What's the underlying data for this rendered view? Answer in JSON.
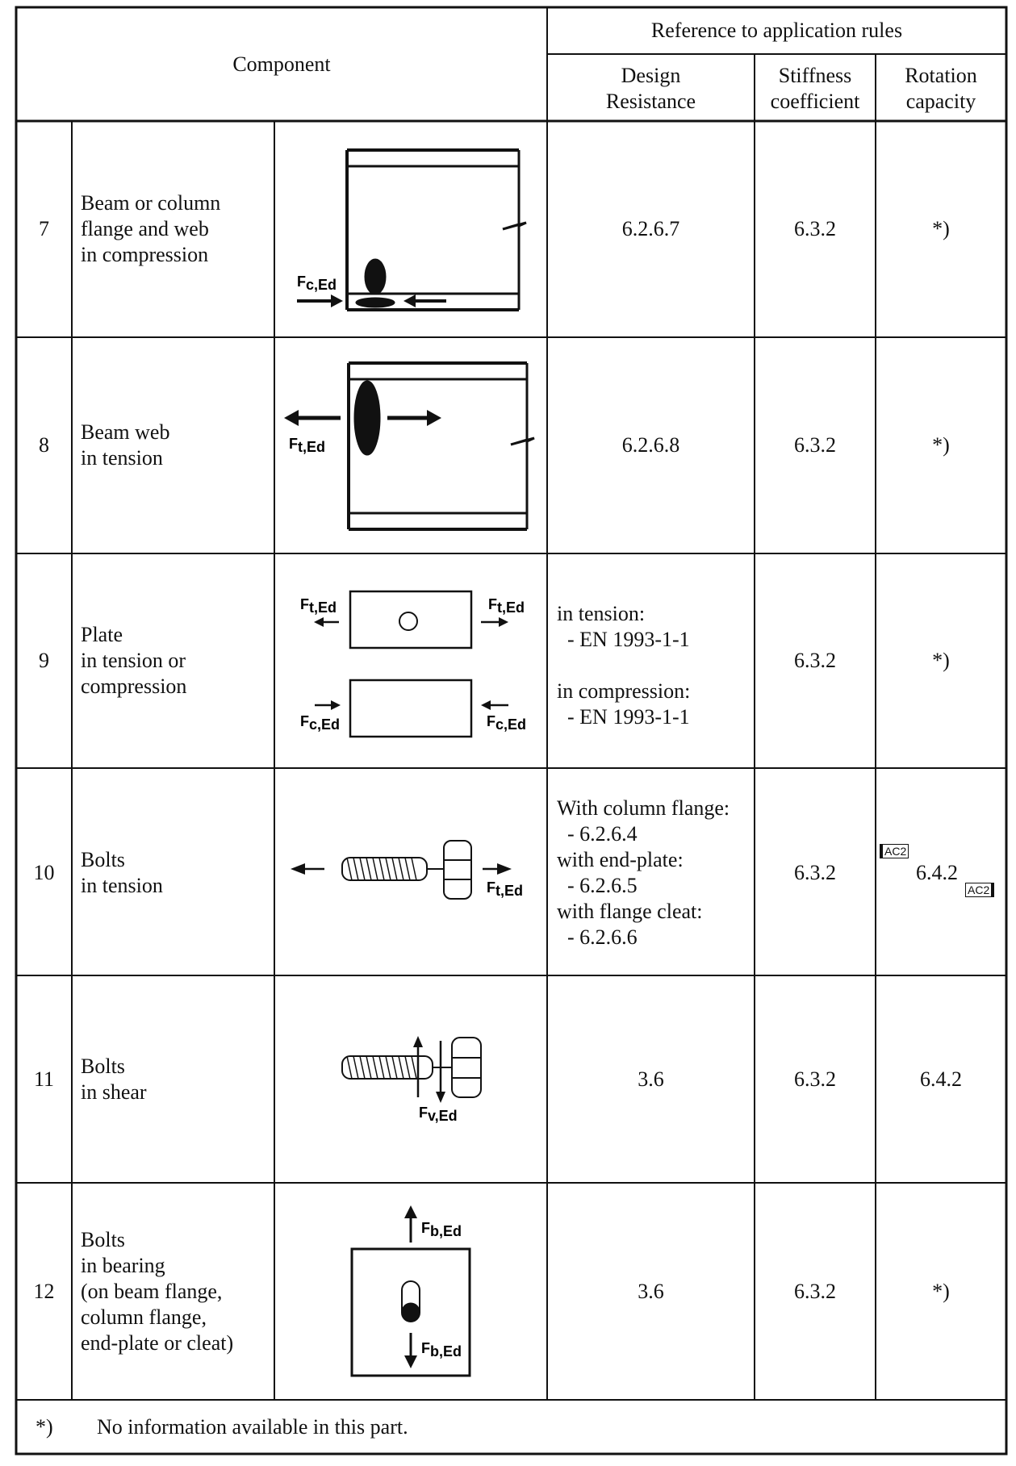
{
  "header": {
    "component": "Component",
    "reference": "Reference to application rules",
    "design_resistance": [
      "Design",
      "Resistance"
    ],
    "stiffness": [
      "Stiffness",
      "coefficient"
    ],
    "rotation": [
      "Rotation",
      "capacity"
    ]
  },
  "rows": [
    {
      "num": "7",
      "name": [
        "Beam or column",
        "flange and web",
        "in compression"
      ],
      "force_labels": [
        "F",
        "c,Ed"
      ],
      "design": [
        "6.2.6.7"
      ],
      "stiffness": "6.3.2",
      "rotation": "*)"
    },
    {
      "num": "8",
      "name": [
        "Beam web",
        "in tension"
      ],
      "force_labels": [
        "F",
        "t,Ed"
      ],
      "design": [
        "6.2.6.8"
      ],
      "stiffness": "6.3.2",
      "rotation": "*)"
    },
    {
      "num": "9",
      "name": [
        "Plate",
        "in tension or",
        "compression"
      ],
      "force_labels": [
        "F",
        "t,Ed",
        "c,Ed"
      ],
      "design": [
        "in tension:",
        "  - EN 1993-1-1",
        "",
        "in compression:",
        "  - EN 1993-1-1"
      ],
      "stiffness": "6.3.2",
      "rotation": "*)"
    },
    {
      "num": "10",
      "name": [
        "Bolts",
        "in tension"
      ],
      "force_labels": [
        "F",
        "t,Ed"
      ],
      "design": [
        "With column flange:",
        "  - 6.2.6.4",
        "with end-plate:",
        "  - 6.2.6.5",
        "with flange cleat:",
        "  - 6.2.6.6"
      ],
      "stiffness": "6.3.2",
      "rotation": "6.4.2",
      "amendment_tag": "AC2"
    },
    {
      "num": "11",
      "name": [
        "Bolts",
        "in shear"
      ],
      "force_labels": [
        "F",
        "v,Ed"
      ],
      "design": [
        "3.6"
      ],
      "stiffness": "6.3.2",
      "rotation": "6.4.2"
    },
    {
      "num": "12",
      "name": [
        "Bolts",
        "in bearing",
        "(on beam flange,",
        "column flange,",
        "end-plate or cleat)"
      ],
      "force_labels": [
        "F",
        "b,Ed"
      ],
      "design": [
        "3.6"
      ],
      "stiffness": "6.3.2",
      "rotation": "*)"
    }
  ],
  "footnote": {
    "mark": "*)",
    "text": "No information available in this part."
  }
}
